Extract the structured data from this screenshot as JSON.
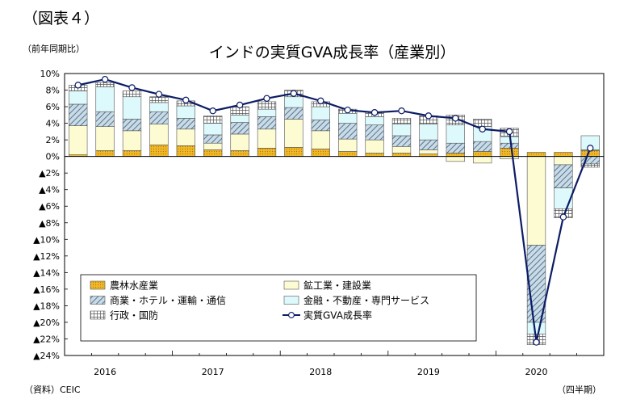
{
  "figure_label": "（図表４）",
  "unit_label": "（前年同期比）",
  "source_label": "（資料）CEIC",
  "x_unit_label": "（四半期）",
  "colors": {
    "agriculture": "#f0b828",
    "mining_construction": "#fdfbd2",
    "trade_hotel": "#a9c3d6",
    "finance": "#ddf9fb",
    "public_admin": "#ffffff",
    "gva_line": "#0c1c66"
  },
  "chart_data": {
    "type": "bar",
    "title": "インドの実質GVA成長率（産業別）",
    "ylim": [
      -24,
      10
    ],
    "y_ticks": [
      10,
      8,
      6,
      4,
      2,
      0,
      -2,
      -4,
      -6,
      -8,
      -10,
      -12,
      -14,
      -16,
      -18,
      -20,
      -22,
      -24
    ],
    "y_tick_labels": [
      "10%",
      "8%",
      "6%",
      "4%",
      "2%",
      "0%",
      "▲2%",
      "▲4%",
      "▲6%",
      "▲8%",
      "▲10%",
      "▲12%",
      "▲14%",
      "▲16%",
      "▲18%",
      "▲20%",
      "▲22%",
      "▲24%"
    ],
    "x_year_labels": [
      "2016",
      "2017",
      "2018",
      "2019",
      "2020"
    ],
    "categories": [
      "2016Q1",
      "2016Q2",
      "2016Q3",
      "2016Q4",
      "2017Q1",
      "2017Q2",
      "2017Q3",
      "2017Q4",
      "2018Q1",
      "2018Q2",
      "2018Q3",
      "2018Q4",
      "2019Q1",
      "2019Q2",
      "2019Q3",
      "2019Q4",
      "2020Q1",
      "2020Q2",
      "2020Q3",
      "2020Q4"
    ],
    "series": [
      {
        "name": "農林水産業",
        "key": "agriculture",
        "pattern": "dots",
        "values": [
          0.2,
          0.7,
          0.7,
          1.4,
          1.3,
          0.8,
          0.7,
          1.0,
          1.1,
          0.9,
          0.6,
          0.4,
          0.4,
          0.3,
          0.4,
          0.6,
          1.0,
          0.5,
          0.5,
          0.7
        ]
      },
      {
        "name": "鉱工業・建設業",
        "key": "mining_construction",
        "pattern": "plain",
        "values": [
          3.5,
          2.9,
          2.4,
          2.5,
          2.0,
          0.8,
          2.0,
          2.3,
          3.4,
          2.2,
          1.5,
          1.6,
          0.8,
          0.5,
          -0.6,
          -0.8,
          -0.3,
          -10.7,
          -1.0,
          0.1
        ]
      },
      {
        "name": "商業・ホテル・運輸・通信",
        "key": "trade_hotel",
        "pattern": "diag",
        "values": [
          2.6,
          1.8,
          1.4,
          1.5,
          1.3,
          1.0,
          1.4,
          1.5,
          1.4,
          1.3,
          1.9,
          1.8,
          1.3,
          1.2,
          1.2,
          1.2,
          0.6,
          -9.3,
          -2.8,
          -0.9
        ]
      },
      {
        "name": "金融・不動産・専門サービス",
        "key": "finance",
        "pattern": "plain",
        "values": [
          1.6,
          3.0,
          2.7,
          1.1,
          1.5,
          1.4,
          0.9,
          0.9,
          1.3,
          1.6,
          1.2,
          1.0,
          1.4,
          1.9,
          2.2,
          1.8,
          0.8,
          -1.4,
          -2.5,
          1.7
        ]
      },
      {
        "name": "行政・国防",
        "key": "public_admin",
        "pattern": "grid",
        "values": [
          0.7,
          0.5,
          0.7,
          0.7,
          0.6,
          0.9,
          1.0,
          0.9,
          0.8,
          0.6,
          0.5,
          0.5,
          0.7,
          1.0,
          1.2,
          0.9,
          1.0,
          -1.3,
          -1.1,
          -0.4
        ]
      }
    ],
    "line": {
      "name": "実質GVA成長率",
      "key": "gva_line",
      "values": [
        8.6,
        9.3,
        8.3,
        7.5,
        6.8,
        5.5,
        6.2,
        7.0,
        7.6,
        6.7,
        5.6,
        5.3,
        5.5,
        4.9,
        4.6,
        3.3,
        3.0,
        -22.4,
        -7.3,
        1.0
      ]
    },
    "legend": {
      "placement": "inside-bottom-left",
      "columns": 2
    }
  }
}
